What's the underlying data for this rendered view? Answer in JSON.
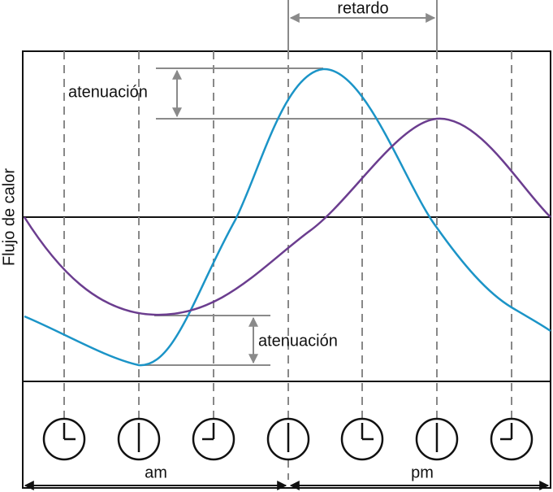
{
  "labels": {
    "y_axis": "Flujo de calor",
    "delay": "retardo",
    "attenuation_top": "atenuación",
    "attenuation_bottom": "atenuación",
    "am": "am",
    "pm": "pm"
  }
}
